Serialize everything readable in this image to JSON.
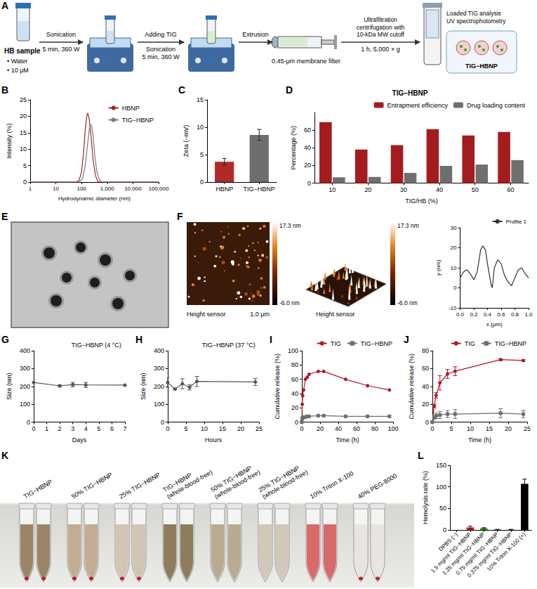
{
  "schematic": {
    "panel": "A",
    "sample": [
      "HB sample",
      "• Water",
      "• 10 μM"
    ],
    "steps": [
      {
        "above": [
          "Sonication"
        ],
        "below": [
          "5 min, 360 W"
        ]
      },
      {
        "above": [
          "Adding TIG"
        ],
        "below": [
          "Sonication",
          "5 min, 360 W"
        ]
      },
      {
        "above": [
          "Extrusion"
        ],
        "below": [
          "0.45-μm membrane filter"
        ]
      },
      {
        "above": [
          "Ultrafiltration centrifugation with 10-kDa MW cutoff"
        ],
        "below": [
          "1 h, 5,000 × g"
        ]
      }
    ],
    "output": [
      "Loaded TIG analysis",
      "UV spectrophotometry"
    ],
    "product": "TIG−HBNP"
  },
  "chart_data": [
    {
      "panel": "B",
      "type": "line",
      "x_label": "Hydrodynamic diameter (nm)",
      "y_label": "Intensity (%)",
      "log": "x",
      "xlim": [
        1,
        100000
      ],
      "xticks": [
        1,
        10,
        100,
        {
          "value": 1000,
          "label": "1,000"
        },
        {
          "value": 10000,
          "label": "10,000"
        },
        {
          "value": 100000,
          "label": "100,000"
        }
      ],
      "ylim": [
        0,
        25
      ],
      "yticks": [
        0,
        5,
        10,
        15,
        20,
        25
      ],
      "grid": false,
      "legend": "top-right",
      "series": [
        {
          "name": "HBNP",
          "color": "#a5262b",
          "x": [
            1,
            60,
            80,
            100,
            120,
            140,
            160,
            175,
            200,
            240,
            290,
            350,
            420,
            500,
            100000
          ],
          "values": [
            0,
            0,
            0.5,
            3,
            9,
            16,
            20,
            21,
            19,
            13,
            6,
            2,
            0.3,
            0,
            0
          ]
        },
        {
          "name": "TIG−HBNP",
          "color": "#7a7a7a",
          "x": [
            1,
            80,
            110,
            140,
            170,
            200,
            225,
            250,
            290,
            340,
            400,
            480,
            560,
            650,
            100000
          ],
          "values": [
            0,
            0,
            1,
            5,
            11,
            16,
            17.5,
            17,
            13,
            7,
            3,
            1,
            0.2,
            0,
            0
          ]
        }
      ]
    },
    {
      "panel": "C",
      "type": "bar",
      "categories": [
        "HBNP",
        "TIG−HBNP"
      ],
      "values": [
        3.7,
        8.6
      ],
      "errors": [
        0.6,
        1.0
      ],
      "colors": [
        "#b02a2c",
        "#6e6e6e"
      ],
      "y_label": "Zeta (−mV)",
      "ylim": [
        0,
        15
      ],
      "yticks": [
        0,
        5,
        10,
        15
      ],
      "grid": false
    },
    {
      "panel": "D",
      "type": "bar",
      "title": "TIG−HBNP",
      "categories": [
        "10",
        "20",
        "30",
        "40",
        "50",
        "60"
      ],
      "x_label": "TIG/HB (%)",
      "y_label": "Percentage (%)",
      "ylim": [
        0,
        80
      ],
      "yticks": [
        0,
        20,
        40,
        60
      ],
      "grid": false,
      "legend": "top-right",
      "series": [
        {
          "name": "Entrapment efficiency",
          "color": "#a31d1f",
          "values": [
            69,
            38,
            43,
            61,
            54,
            58
          ]
        },
        {
          "name": "Drug loading content",
          "color": "#6f6f6f",
          "values": [
            6.5,
            7,
            11.5,
            19.5,
            21,
            26
          ]
        }
      ]
    },
    {
      "type": "line",
      "x_label": "x (μm)",
      "y_label": "y (nm)",
      "xlim": [
        0,
        1
      ],
      "xticks": [
        {
          "value": 0,
          "label": "0.0"
        },
        0.2,
        0.4,
        0.6,
        0.8,
        {
          "value": 1,
          "label": "1.0"
        }
      ],
      "ylim": [
        -10,
        30
      ],
      "yticks": [
        -10,
        0,
        10,
        20,
        30
      ],
      "grid": false,
      "legend": "top-right",
      "series": [
        {
          "name": "Profile 1",
          "color": "#333333",
          "x": [
            0,
            0.05,
            0.1,
            0.15,
            0.2,
            0.25,
            0.3,
            0.33,
            0.37,
            0.4,
            0.45,
            0.47,
            0.5,
            0.55,
            0.6,
            0.65,
            0.7,
            0.75,
            0.8,
            0.85,
            0.9,
            0.95,
            1.0
          ],
          "values": [
            5,
            8,
            9,
            7,
            4,
            8,
            19,
            21,
            19,
            12,
            2,
            0,
            10,
            14,
            12,
            6,
            3,
            1,
            5,
            9,
            10,
            7,
            5
          ]
        }
      ]
    },
    {
      "panel": "G",
      "type": "line",
      "title": "TIG−HBNP (4 °C)",
      "x_label": "Days",
      "y_label": "Size (nm)",
      "x": [
        0,
        2,
        3,
        4,
        7
      ],
      "values": [
        222,
        203,
        210,
        208,
        207
      ],
      "errors": [
        0,
        6,
        12,
        14,
        0
      ],
      "color": "#555555",
      "marker": "circle",
      "xlim": [
        0,
        7
      ],
      "xticks": [
        0,
        1,
        2,
        3,
        4,
        5,
        6,
        7
      ],
      "ylim": [
        0,
        400
      ],
      "yticks": [
        0,
        100,
        200,
        300,
        400
      ],
      "grid": false
    },
    {
      "panel": "H",
      "type": "line",
      "title": "TIG−HBNP (37 °C)",
      "x_label": "Hours",
      "y_label": "Size (nm)",
      "x": [
        0,
        2,
        4,
        6,
        8,
        24
      ],
      "values": [
        222,
        185,
        215,
        195,
        228,
        225
      ],
      "errors": [
        28,
        4,
        28,
        15,
        28,
        20
      ],
      "color": "#555555",
      "marker": "circle",
      "xlim": [
        0,
        25
      ],
      "xticks": [
        0,
        5,
        10,
        15,
        20,
        25
      ],
      "ylim": [
        0,
        400
      ],
      "yticks": [
        0,
        100,
        200,
        300,
        400
      ],
      "grid": false
    },
    {
      "panel": "I",
      "type": "line",
      "x_label": "Time (h)",
      "y_label": "Cumulative release (%)",
      "x": [
        0,
        0.5,
        1,
        2,
        4,
        6,
        8,
        18,
        24,
        48,
        72,
        96
      ],
      "xlim": [
        0,
        100
      ],
      "xticks": [
        0,
        20,
        40,
        60,
        80,
        100
      ],
      "ylim": [
        0,
        100
      ],
      "yticks": [
        0,
        20,
        40,
        60,
        80,
        100
      ],
      "grid": false,
      "legend": "top-right",
      "series": [
        {
          "name": "TIG",
          "color": "#b2182b",
          "marker": "circle",
          "values": [
            0,
            25,
            37,
            45,
            60,
            63,
            67,
            71,
            71,
            60,
            51,
            45
          ]
        },
        {
          "name": "TIG−HBNP",
          "color": "#6e6e6e",
          "marker": "square",
          "values": [
            0,
            5,
            6,
            7,
            7,
            8,
            8,
            9,
            9,
            8,
            8,
            8
          ]
        }
      ]
    },
    {
      "panel": "J",
      "type": "line",
      "x_label": "Time (h)",
      "y_label": "Cumulative release (%)",
      "x": [
        0,
        0.5,
        1,
        2,
        4,
        6,
        18,
        24
      ],
      "xlim": [
        0,
        25
      ],
      "xticks": [
        0,
        5,
        10,
        15,
        20,
        25
      ],
      "ylim": [
        0,
        80
      ],
      "yticks": [
        0,
        20,
        40,
        60,
        80
      ],
      "grid": false,
      "legend": "top-right",
      "series": [
        {
          "name": "TIG",
          "color": "#b2182b",
          "marker": "circle",
          "values": [
            0,
            18,
            30,
            44,
            54,
            57,
            70,
            69
          ],
          "errors": [
            0,
            2,
            3,
            8,
            5,
            5,
            1,
            1
          ]
        },
        {
          "name": "TIG−HBNP",
          "color": "#6e6e6e",
          "marker": "square",
          "values": [
            0,
            5,
            7,
            8,
            9,
            9,
            10,
            9
          ],
          "errors": [
            0,
            2,
            3,
            4,
            4,
            5,
            5,
            4
          ]
        }
      ]
    },
    {
      "panel": "L",
      "type": "bar",
      "categories": [
        "DPBS (−)",
        "1.5 mg/ml TIG−HBNP",
        "1.25 mg/ml TIG−HBNP",
        "0.75 mg/ml TIG−HBNP",
        "0.375 mg/ml TIG−HBNP",
        "10% Triton X-100 (+)"
      ],
      "values": [
        0,
        6,
        4,
        1,
        1,
        107
      ],
      "errors": [
        0,
        3,
        1.5,
        0.5,
        0.5,
        11
      ],
      "colors": [
        "#2b59a8",
        "#e0201f",
        "#2ca02c",
        "#7b3294",
        "#ff7f0e",
        "#000000"
      ],
      "y_label": "Hemolysis rate (%)",
      "ylim": [
        0,
        150
      ],
      "yticks": [
        0,
        50,
        100,
        150
      ],
      "grid": false
    }
  ],
  "tem_image": {
    "panel": "E"
  },
  "afm_images": {
    "panel": "F",
    "colorbar": [
      "17.3 nm",
      "-6.0 nm"
    ],
    "caption": "Height sensor",
    "scale_bar": "1.0 μm"
  },
  "photo": {
    "panel": "K",
    "labels": [
      "TIG−HBNP",
      "50% TIG−HBNP",
      "25% TIG−HBNP",
      "TIG−HBNP (whole-blood-free)",
      "50% TIG−HBNP (whole-blood-free)",
      "25% TIG−HBNP (whole-blood-free)",
      "10% Triton X-100",
      "40% PEG-8000"
    ]
  }
}
